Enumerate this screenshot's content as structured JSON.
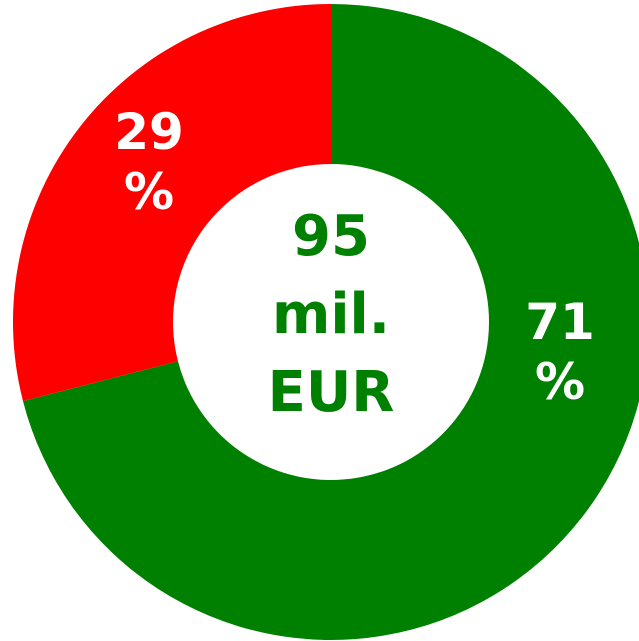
{
  "chart_data": {
    "type": "donut",
    "center_label": "95 mil. EUR",
    "series": [
      {
        "color": "#008000",
        "values": [
          71,
          29
        ],
        "value_labels": [
          "71 %",
          "29 %"
        ],
        "colors": [
          "#008000",
          "#ff0000"
        ]
      }
    ]
  }
}
